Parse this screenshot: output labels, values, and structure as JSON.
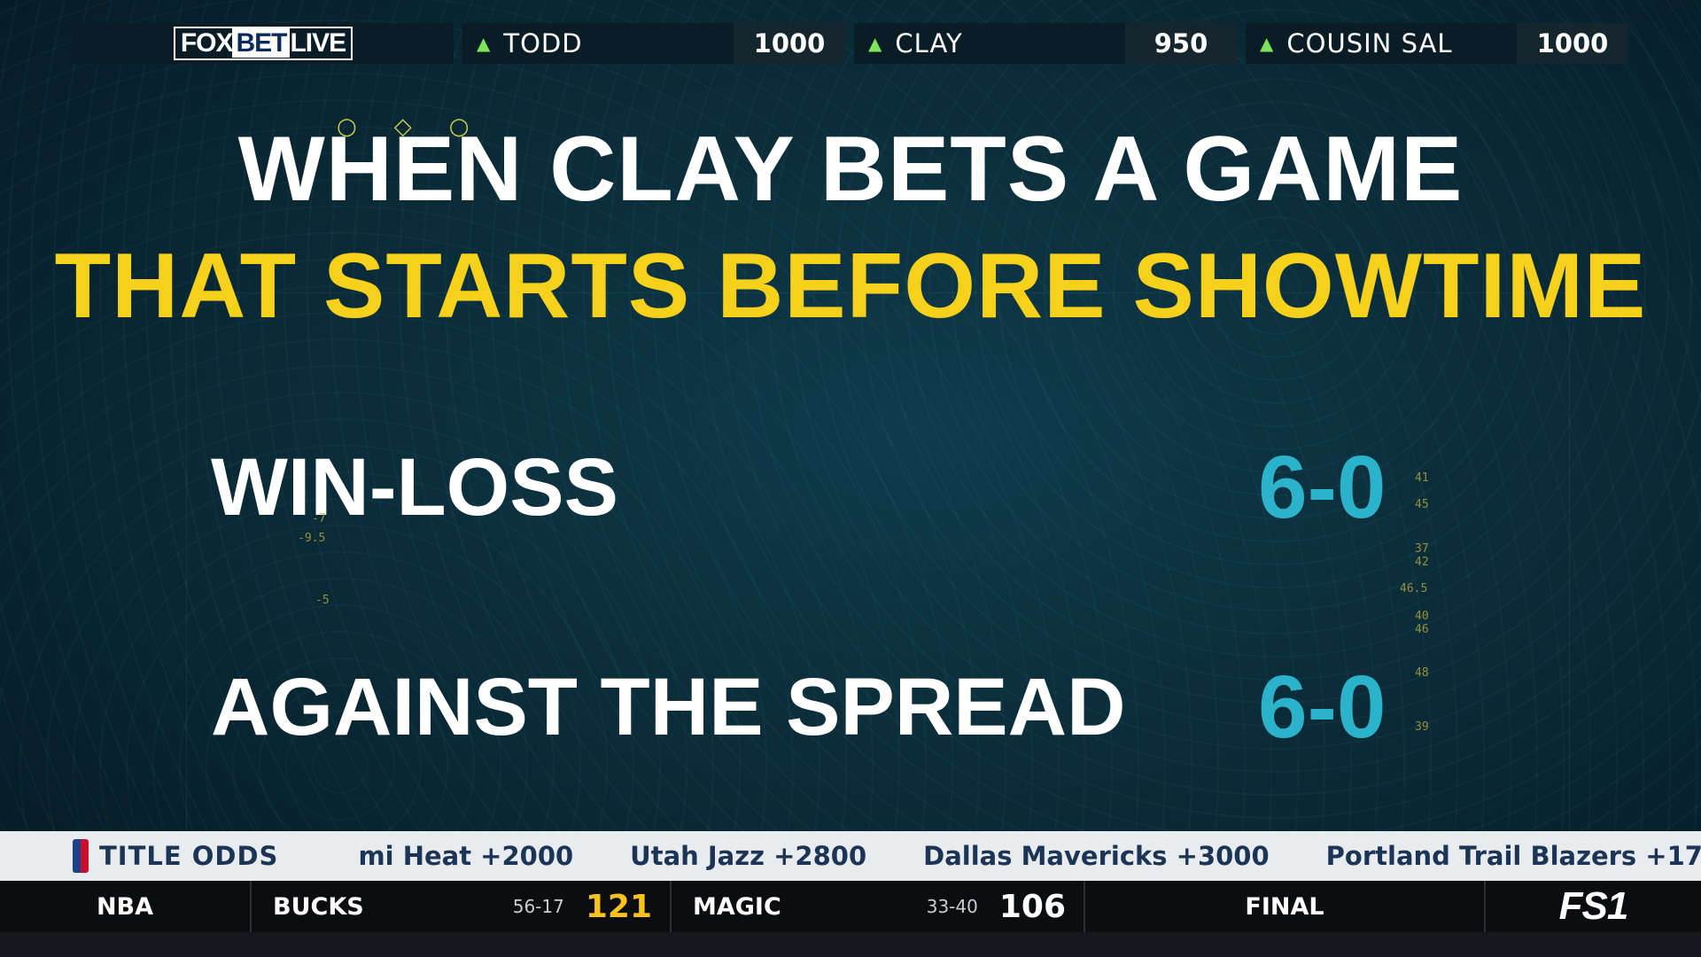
{
  "topbar": {
    "logo_fox": "FOX",
    "logo_bet": "BET",
    "logo_live": "LIVE",
    "scores": [
      {
        "name": "TODD",
        "value": "1000"
      },
      {
        "name": "CLAY",
        "value": "950"
      },
      {
        "name": "COUSIN SAL",
        "value": "1000"
      }
    ]
  },
  "headline": {
    "line1": "WHEN CLAY BETS A GAME",
    "line2": "THAT STARTS BEFORE SHOWTIME"
  },
  "stats": [
    {
      "label": "WIN-LOSS",
      "value": "6-0"
    },
    {
      "label": "AGAINST THE SPREAD",
      "value": "6-0"
    }
  ],
  "odds_marks": [
    "41",
    "45",
    "37",
    "42",
    "46.5",
    "40",
    "46",
    "48",
    "39",
    "-7",
    "-9.5",
    "-5"
  ],
  "ticker": {
    "title": "TITLE ODDS",
    "items": [
      "mi Heat +2000",
      "Utah Jazz +2800",
      "Dallas Mavericks +3000",
      "Portland Trail Blazers +17"
    ]
  },
  "scoreboard": {
    "league": "NBA",
    "team1": {
      "name": "BUCKS",
      "record": "56-17",
      "score": "121",
      "color": "#f6c21b"
    },
    "team2": {
      "name": "MAGIC",
      "record": "33-40",
      "score": "106",
      "color": "#ffffff"
    },
    "status": "FINAL",
    "network": "FS1"
  },
  "colors": {
    "accent_yellow": "#f6d11b",
    "accent_blue": "#2bb3cb",
    "ticker_bg": "#e9ecee"
  }
}
